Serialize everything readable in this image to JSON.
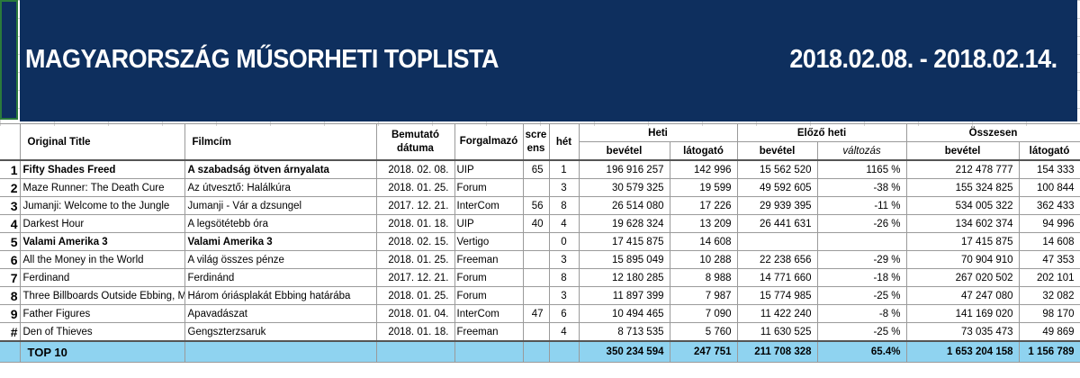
{
  "banner": {
    "title": "MAGYARORSZÁG MŰSORHETI TOPLISTA",
    "dates": "2018.02.08. - 2018.02.14."
  },
  "headers": {
    "original_title": "Original Title",
    "filmcim": "Filmcím",
    "bemutato": "Bemutató dátuma",
    "forgalmazo": "Forgalmazó",
    "screens": "screens",
    "het": "hét",
    "heti": "Heti",
    "elozo_heti": "Előző heti",
    "osszesen": "Összesen",
    "bevetel": "bevétel",
    "latogato": "látogató",
    "valtozas": "változás"
  },
  "rows": [
    {
      "rank": "1",
      "orig": "Fifty Shades Freed",
      "hu": "A szabadság ötven árnyalata",
      "date": "2018. 02. 08.",
      "dist": "UIP",
      "screens": "65",
      "week": "1",
      "rev": "196 916 257",
      "vis": "142 996",
      "prev_rev": "15 562 520",
      "change": "1165 %",
      "tot_rev": "212 478 777",
      "tot_vis": "154 333",
      "bold": true
    },
    {
      "rank": "2",
      "orig": "Maze Runner: The Death Cure",
      "hu": "Az útvesztő: Halálkúra",
      "date": "2018. 01. 25.",
      "dist": "Forum",
      "screens": "",
      "week": "3",
      "rev": "30 579 325",
      "vis": "19 599",
      "prev_rev": "49 592 605",
      "change": "-38 %",
      "tot_rev": "155 324 825",
      "tot_vis": "100 844",
      "bold": false
    },
    {
      "rank": "3",
      "orig": "Jumanji: Welcome to the Jungle",
      "hu": "Jumanji - Vár a dzsungel",
      "date": "2017. 12. 21.",
      "dist": "InterCom",
      "screens": "56",
      "week": "8",
      "rev": "26 514 080",
      "vis": "17 226",
      "prev_rev": "29 939 395",
      "change": "-11 %",
      "tot_rev": "534 005 322",
      "tot_vis": "362 433",
      "bold": false
    },
    {
      "rank": "4",
      "orig": "Darkest Hour",
      "hu": "A legsötétebb óra",
      "date": "2018. 01. 18.",
      "dist": "UIP",
      "screens": "40",
      "week": "4",
      "rev": "19 628 324",
      "vis": "13 209",
      "prev_rev": "26 441 631",
      "change": "-26 %",
      "tot_rev": "134 602 374",
      "tot_vis": "94 996",
      "bold": false
    },
    {
      "rank": "5",
      "orig": "Valami Amerika 3",
      "hu": "Valami Amerika 3",
      "date": "2018. 02. 15.",
      "dist": "Vertigo",
      "screens": "",
      "week": "0",
      "rev": "17 415 875",
      "vis": "14 608",
      "prev_rev": "",
      "change": "",
      "tot_rev": "17 415 875",
      "tot_vis": "14 608",
      "bold": true
    },
    {
      "rank": "6",
      "orig": "All the Money in the World",
      "hu": "A világ összes pénze",
      "date": "2018. 01. 25.",
      "dist": "Freeman",
      "screens": "",
      "week": "3",
      "rev": "15 895 049",
      "vis": "10 288",
      "prev_rev": "22 238 656",
      "change": "-29 %",
      "tot_rev": "70 904 910",
      "tot_vis": "47 353",
      "bold": false
    },
    {
      "rank": "7",
      "orig": "Ferdinand",
      "hu": "Ferdinánd",
      "date": "2017. 12. 21.",
      "dist": "Forum",
      "screens": "",
      "week": "8",
      "rev": "12 180 285",
      "vis": "8 988",
      "prev_rev": "14 771 660",
      "change": "-18 %",
      "tot_rev": "267 020 502",
      "tot_vis": "202 101",
      "bold": false
    },
    {
      "rank": "8",
      "orig": "Three Billboards Outside Ebbing, M",
      "hu": "Három óriásplakát Ebbing határába",
      "date": "2018. 01. 25.",
      "dist": "Forum",
      "screens": "",
      "week": "3",
      "rev": "11 897 399",
      "vis": "7 987",
      "prev_rev": "15 774 985",
      "change": "-25 %",
      "tot_rev": "47 247 080",
      "tot_vis": "32 082",
      "bold": false
    },
    {
      "rank": "9",
      "orig": "Father Figures",
      "hu": "Apavadászat",
      "date": "2018. 01. 04.",
      "dist": "InterCom",
      "screens": "47",
      "week": "6",
      "rev": "10 494 465",
      "vis": "7 090",
      "prev_rev": "11 422 240",
      "change": "-8 %",
      "tot_rev": "141 169 020",
      "tot_vis": "98 170",
      "bold": false
    },
    {
      "rank": "#",
      "orig": "Den of Thieves",
      "hu": "Gengszterzsaruk",
      "date": "2018. 01. 18.",
      "dist": "Freeman",
      "screens": "",
      "week": "4",
      "rev": "8 713 535",
      "vis": "5 760",
      "prev_rev": "11 630 525",
      "change": "-25 %",
      "tot_rev": "73 035 473",
      "tot_vis": "49 869",
      "bold": false
    }
  ],
  "total": {
    "label": "TOP 10",
    "rev": "350 234 594",
    "vis": "247 751",
    "prev_rev": "211 708 328",
    "change": "65.4%",
    "tot_rev": "1 653 204 158",
    "tot_vis": "1 156 789"
  }
}
